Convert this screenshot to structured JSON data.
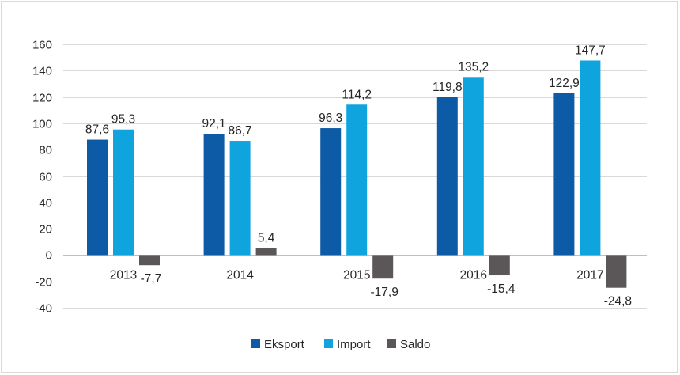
{
  "chart_data": {
    "type": "bar",
    "categories": [
      "2013",
      "2014",
      "2015",
      "2016",
      "2017"
    ],
    "series": [
      {
        "name": "Eksport",
        "values": [
          87.6,
          92.1,
          96.3,
          119.8,
          122.9
        ],
        "labels": [
          "87,6",
          "92,1",
          "96,3",
          "119,8",
          "122,9"
        ],
        "color": "#0d5ba6"
      },
      {
        "name": "Import",
        "values": [
          95.3,
          86.7,
          114.2,
          135.2,
          147.7
        ],
        "labels": [
          "95,3",
          "86,7",
          "114,2",
          "135,2",
          "147,7"
        ],
        "color": "#10a4df"
      },
      {
        "name": "Saldo",
        "values": [
          -7.7,
          5.4,
          -17.9,
          -15.4,
          -24.8
        ],
        "labels": [
          "-7,7",
          "5,4",
          "-17,9",
          "-15,4",
          "-24,8"
        ],
        "color": "#5b5759"
      }
    ],
    "ylim": [
      -40,
      160
    ],
    "yticks": [
      -40,
      -20,
      0,
      20,
      40,
      60,
      80,
      100,
      120,
      140,
      160
    ],
    "grid": true,
    "legend_position": "bottom",
    "title": "",
    "xlabel": "",
    "ylabel": ""
  }
}
